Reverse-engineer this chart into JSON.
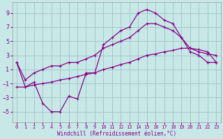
{
  "xlabel": "Windchill (Refroidissement éolien,°C)",
  "bg_color": "#c8e8e8",
  "grid_color": "#a0c8c8",
  "line_color": "#880088",
  "xlim": [
    -0.5,
    23.5
  ],
  "ylim": [
    -6.5,
    10.5
  ],
  "xticks": [
    0,
    1,
    2,
    3,
    4,
    5,
    6,
    7,
    8,
    9,
    10,
    11,
    12,
    13,
    14,
    15,
    16,
    17,
    18,
    19,
    20,
    21,
    22,
    23
  ],
  "yticks": [
    -5,
    -3,
    -1,
    1,
    3,
    5,
    7,
    9
  ],
  "series1_x": [
    0,
    1,
    2,
    3,
    4,
    5,
    6,
    7,
    8,
    9,
    10,
    11,
    12,
    13,
    14,
    15,
    16,
    17,
    18,
    19,
    20,
    21,
    22,
    23
  ],
  "series1_y": [
    2,
    -1.5,
    -0.8,
    -3.8,
    -5,
    -5,
    -2.8,
    -3.2,
    0.5,
    0.5,
    4.5,
    5.5,
    6.5,
    7,
    9,
    9.5,
    9,
    8,
    7.5,
    5.5,
    3.5,
    3,
    2,
    2
  ],
  "series2_x": [
    0,
    1,
    2,
    3,
    4,
    5,
    6,
    7,
    8,
    9,
    10,
    11,
    12,
    13,
    14,
    15,
    16,
    17,
    18,
    19,
    20,
    21,
    22,
    23
  ],
  "series2_y": [
    2,
    -0.5,
    0.5,
    1.0,
    1.5,
    1.5,
    2.0,
    2.0,
    2.5,
    3.0,
    4.0,
    4.5,
    5.0,
    5.5,
    6.5,
    7.5,
    7.5,
    7.0,
    6.5,
    5.5,
    4.0,
    3.5,
    3.2,
    3.0
  ],
  "series3_x": [
    0,
    1,
    2,
    3,
    4,
    5,
    6,
    7,
    8,
    9,
    10,
    11,
    12,
    13,
    14,
    15,
    16,
    17,
    18,
    19,
    20,
    21,
    22,
    23
  ],
  "series3_y": [
    -1.5,
    -1.5,
    -1.2,
    -1.0,
    -0.8,
    -0.5,
    -0.3,
    0.0,
    0.3,
    0.5,
    1.0,
    1.3,
    1.7,
    2.0,
    2.5,
    3.0,
    3.2,
    3.5,
    3.7,
    4.0,
    4.0,
    3.8,
    3.5,
    2.0
  ]
}
